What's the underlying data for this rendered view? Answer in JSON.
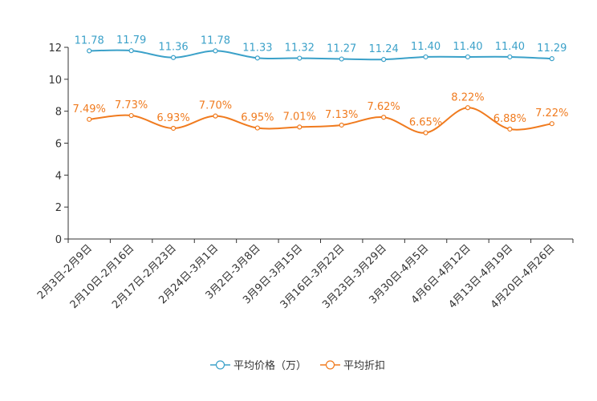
{
  "chart_data": {
    "type": "line",
    "title": "",
    "xlabel": "",
    "ylabel": "",
    "ylim": [
      0,
      12
    ],
    "yticks": [
      0,
      2,
      4,
      6,
      8,
      10,
      12
    ],
    "grid": false,
    "legend_position": "bottom-center",
    "categories": [
      "2月3日-2月9日",
      "2月10日-2月16日",
      "2月17日-2月23日",
      "2月24日-3月1日",
      "3月2日-3月8日",
      "3月9日-3月15日",
      "3月16日-3月22日",
      "3月23日-3月29日",
      "3月30日-4月5日",
      "4月6日-4月12日",
      "4月13日-4月19日",
      "4月20日-4月26日"
    ],
    "series": [
      {
        "name": "平均价格（万）",
        "color": "#3ba1c9",
        "values": [
          11.78,
          11.79,
          11.36,
          11.78,
          11.33,
          11.32,
          11.27,
          11.24,
          11.4,
          11.4,
          11.4,
          11.29
        ],
        "labels": [
          "11.78",
          "11.79",
          "11.36",
          "11.78",
          "11.33",
          "11.32",
          "11.27",
          "11.24",
          "11.40",
          "11.40",
          "11.40",
          "11.29"
        ]
      },
      {
        "name": "平均折扣",
        "color": "#f07b1f",
        "values": [
          7.49,
          7.73,
          6.93,
          7.7,
          6.95,
          7.01,
          7.13,
          7.62,
          6.65,
          8.22,
          6.88,
          7.22
        ],
        "labels": [
          "7.49%",
          "7.73%",
          "6.93%",
          "7.70%",
          "6.95%",
          "7.01%",
          "7.13%",
          "7.62%",
          "6.65%",
          "8.22%",
          "6.88%",
          "7.22%"
        ]
      }
    ]
  }
}
